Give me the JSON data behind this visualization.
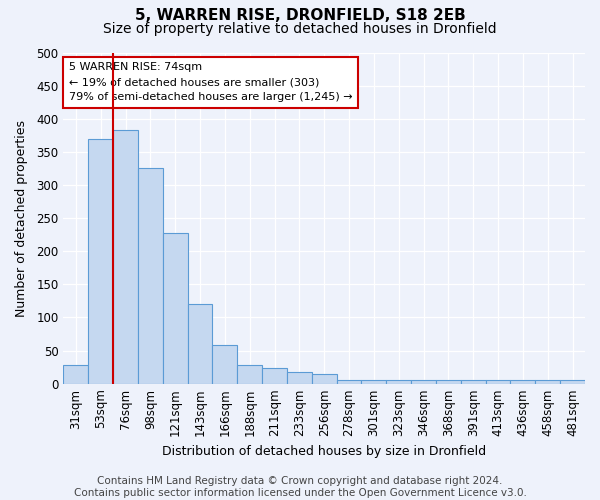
{
  "title": "5, WARREN RISE, DRONFIELD, S18 2EB",
  "subtitle": "Size of property relative to detached houses in Dronfield",
  "xlabel": "Distribution of detached houses by size in Dronfield",
  "ylabel": "Number of detached properties",
  "categories": [
    "31sqm",
    "53sqm",
    "76sqm",
    "98sqm",
    "121sqm",
    "143sqm",
    "166sqm",
    "188sqm",
    "211sqm",
    "233sqm",
    "256sqm",
    "278sqm",
    "301sqm",
    "323sqm",
    "346sqm",
    "368sqm",
    "391sqm",
    "413sqm",
    "436sqm",
    "458sqm",
    "481sqm"
  ],
  "values": [
    28,
    370,
    383,
    325,
    227,
    120,
    58,
    28,
    23,
    18,
    15,
    5,
    5,
    5,
    5,
    5,
    5,
    5,
    5,
    5,
    5
  ],
  "bar_color": "#c5d8f0",
  "bar_edge_color": "#5b9bd5",
  "red_line_index": 2,
  "red_line_color": "#cc0000",
  "ylim": [
    0,
    500
  ],
  "yticks": [
    0,
    50,
    100,
    150,
    200,
    250,
    300,
    350,
    400,
    450,
    500
  ],
  "annotation_line1": "5 WARREN RISE: 74sqm",
  "annotation_line2": "← 19% of detached houses are smaller (303)",
  "annotation_line3": "79% of semi-detached houses are larger (1,245) →",
  "annotation_box_color": "#ffffff",
  "annotation_box_edge": "#cc0000",
  "footer_line1": "Contains HM Land Registry data © Crown copyright and database right 2024.",
  "footer_line2": "Contains public sector information licensed under the Open Government Licence v3.0.",
  "background_color": "#eef2fb",
  "grid_color": "#ffffff",
  "title_fontsize": 11,
  "subtitle_fontsize": 10,
  "label_fontsize": 9,
  "tick_fontsize": 8.5,
  "annotation_fontsize": 8,
  "footer_fontsize": 7.5
}
